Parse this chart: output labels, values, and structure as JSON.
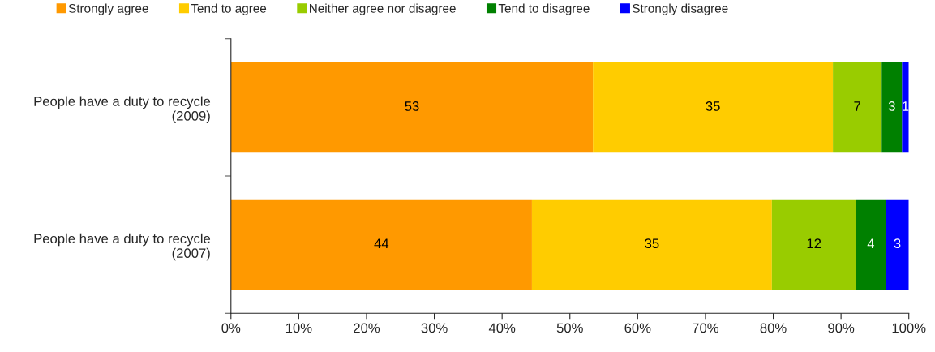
{
  "chart_data": {
    "type": "bar",
    "orientation": "horizontal",
    "stacked": true,
    "categories": [
      "People have a duty to recycle\n(2009)",
      "People have a duty to recycle\n(2007)"
    ],
    "series": [
      {
        "name": "Strongly agree",
        "color": "#ff9900",
        "values": [
          53.4,
          44.4
        ],
        "value_labels": [
          "53",
          "44"
        ]
      },
      {
        "name": "Tend to agree",
        "color": "#ffcc00",
        "values": [
          35.4,
          35.4
        ],
        "value_labels": [
          "35",
          "35"
        ]
      },
      {
        "name": "Neither agree nor disagree",
        "color": "#99cc00",
        "values": [
          7.2,
          12.4
        ],
        "value_labels": [
          "7",
          "12"
        ]
      },
      {
        "name": "Tend to disagree",
        "color": "#008000",
        "values": [
          3.0,
          4.4
        ],
        "value_labels": [
          "3",
          "4"
        ]
      },
      {
        "name": "Strongly disagree",
        "color": "#0000ff",
        "values": [
          1.0,
          3.4
        ],
        "value_labels": [
          "1",
          "3"
        ]
      }
    ],
    "xlim": [
      0,
      100
    ],
    "xticks": [
      {
        "value": 0,
        "label": "0%"
      },
      {
        "value": 10,
        "label": "10%"
      },
      {
        "value": 20,
        "label": "20%"
      },
      {
        "value": 30,
        "label": "30%"
      },
      {
        "value": 40,
        "label": "40%"
      },
      {
        "value": 50,
        "label": "50%"
      },
      {
        "value": 60,
        "label": "60%"
      },
      {
        "value": 70,
        "label": "70%"
      },
      {
        "value": 80,
        "label": "80%"
      },
      {
        "value": 90,
        "label": "90%"
      },
      {
        "value": 100,
        "label": "100%"
      }
    ],
    "grid": false,
    "legend": "top"
  }
}
